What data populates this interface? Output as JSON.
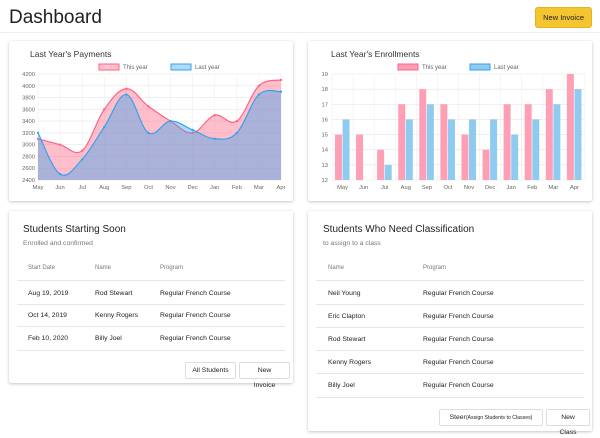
{
  "header": {
    "title": "Dashboard",
    "new_invoice_label": "New Invoice"
  },
  "payments": {
    "title": "Last Year's Payments",
    "legend_this": "This year",
    "legend_last": "Last year"
  },
  "enrollments": {
    "title": "Last Year's Enrollments",
    "legend_this": "This year",
    "legend_last": "Last year"
  },
  "starting": {
    "title": "Students Starting Soon",
    "subtitle": "Enrolled and confirmed",
    "col_date": "Start Date",
    "col_name": "Name",
    "col_program": "Program",
    "rows": [
      {
        "date": "Aug 19, 2019",
        "name": "Rod Stewart",
        "program": "Regular French Course"
      },
      {
        "date": "Oct 14, 2019",
        "name": "Kenny Rogers",
        "program": "Regular French Course"
      },
      {
        "date": "Feb 10, 2020",
        "name": "Billy Joel",
        "program": "Regular French Course"
      }
    ],
    "all_students_label": "All Students",
    "new_invoice_label": "New Invoice"
  },
  "classification": {
    "title": "Students Who Need Classification",
    "subtitle": "to assign to a class",
    "col_name": "Name",
    "col_program": "Program",
    "rows": [
      {
        "name": "Neil Young",
        "program": "Regular French Course"
      },
      {
        "name": "Eric Clapton",
        "program": "Regular French Course"
      },
      {
        "name": "Rod Stewart",
        "program": "Regular French Course"
      },
      {
        "name": "Kenny Rogers",
        "program": "Regular French Course"
      },
      {
        "name": "Billy Joel",
        "program": "Regular French Course"
      }
    ],
    "steer_label": "Steer",
    "steer_small": "(Assign Students to Classes)",
    "new_class_label": "New Class"
  },
  "chart_data": [
    {
      "type": "area",
      "title": "Last Year's Payments",
      "categories": [
        "May",
        "Jun",
        "Jul",
        "Aug",
        "Sep",
        "Oct",
        "Nov",
        "Dec",
        "Jan",
        "Feb",
        "Mar",
        "Apr"
      ],
      "ylim": [
        2400,
        4200
      ],
      "yticks": [
        2400,
        2600,
        2800,
        3000,
        3200,
        3400,
        3600,
        3800,
        4000,
        4200
      ],
      "series": [
        {
          "name": "This year",
          "color": "#ff6384",
          "values": [
            3100,
            3000,
            2900,
            3600,
            3950,
            3650,
            3400,
            3200,
            3500,
            3400,
            4000,
            4100
          ]
        },
        {
          "name": "Last year",
          "color": "#36a2eb",
          "values": [
            3200,
            2500,
            2750,
            3300,
            3850,
            3200,
            3400,
            3250,
            3100,
            3200,
            3850,
            3900
          ]
        }
      ],
      "legend": "top",
      "grid": true
    },
    {
      "type": "bar",
      "title": "Last Year's Enrollments",
      "categories": [
        "May",
        "Jun",
        "Jul",
        "Aug",
        "Sep",
        "Oct",
        "Nov",
        "Dec",
        "Jan",
        "Feb",
        "Mar",
        "Apr"
      ],
      "ylim": [
        12,
        19
      ],
      "yticks": [
        12,
        13,
        14,
        15,
        16,
        17,
        18,
        19
      ],
      "series": [
        {
          "name": "This year",
          "color": "#ff9fb5",
          "values": [
            15,
            15,
            14,
            17,
            18,
            17,
            15,
            14,
            17,
            17,
            18,
            19
          ]
        },
        {
          "name": "Last year",
          "color": "#8fcaf0",
          "values": [
            16,
            12,
            13,
            16,
            17,
            16,
            16,
            16,
            15,
            16,
            17,
            18
          ]
        }
      ],
      "legend": "top",
      "grid": true
    }
  ]
}
